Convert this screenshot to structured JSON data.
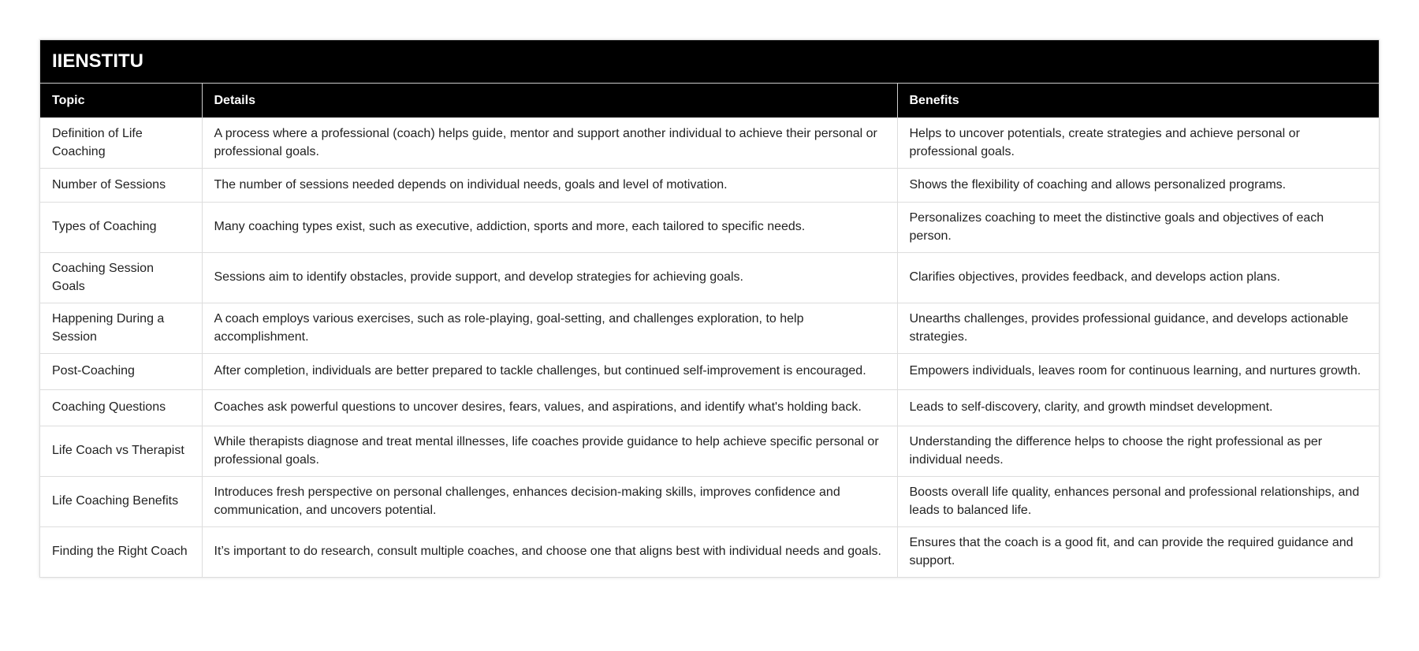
{
  "title": "IIENSTITU",
  "columns": [
    "Topic",
    "Details",
    "Benefits"
  ],
  "rows": [
    {
      "topic": "Definition of Life Coaching",
      "details": "A process where a professional (coach) helps guide, mentor and support another individual to achieve their personal or professional goals.",
      "benefits": "Helps to uncover potentials, create strategies and achieve personal or professional goals."
    },
    {
      "topic": "Number of Sessions",
      "details": "The number of sessions needed depends on individual needs, goals and level of motivation.",
      "benefits": "Shows the flexibility of coaching and allows personalized programs."
    },
    {
      "topic": "Types of Coaching",
      "details": "Many coaching types exist, such as executive, addiction, sports and more, each tailored to specific needs.",
      "benefits": "Personalizes coaching to meet the distinctive goals and objectives of each person."
    },
    {
      "topic": "Coaching Session Goals",
      "details": "Sessions aim to identify obstacles, provide support, and develop strategies for achieving goals.",
      "benefits": "Clarifies objectives, provides feedback, and develops action plans."
    },
    {
      "topic": "Happening During a Session",
      "details": "A coach employs various exercises, such as role-playing, goal-setting, and challenges exploration, to help accomplishment.",
      "benefits": "Unearths challenges, provides professional guidance, and develops actionable strategies."
    },
    {
      "topic": "Post-Coaching",
      "details": "After completion, individuals are better prepared to tackle challenges, but continued self-improvement is encouraged.",
      "benefits": "Empowers individuals, leaves room for continuous learning, and nurtures growth."
    },
    {
      "topic": "Coaching Questions",
      "details": "Coaches ask powerful questions to uncover desires, fears, values, and aspirations, and identify what's holding back.",
      "benefits": "Leads to self-discovery, clarity, and growth mindset development."
    },
    {
      "topic": "Life Coach vs Therapist",
      "details": "While therapists diagnose and treat mental illnesses, life coaches provide guidance to help achieve specific personal or professional goals.",
      "benefits": "Understanding the difference helps to choose the right professional as per individual needs."
    },
    {
      "topic": "Life Coaching Benefits",
      "details": "Introduces fresh perspective on personal challenges, enhances decision-making skills, improves confidence and communication, and uncovers potential.",
      "benefits": "Boosts overall life quality, enhances personal and professional relationships, and leads to balanced life."
    },
    {
      "topic": "Finding the Right Coach",
      "details": "It’s important to do research, consult multiple coaches, and choose one that aligns best with individual needs and goals.",
      "benefits": "Ensures that the coach is a good fit, and can provide the required guidance and support."
    }
  ]
}
